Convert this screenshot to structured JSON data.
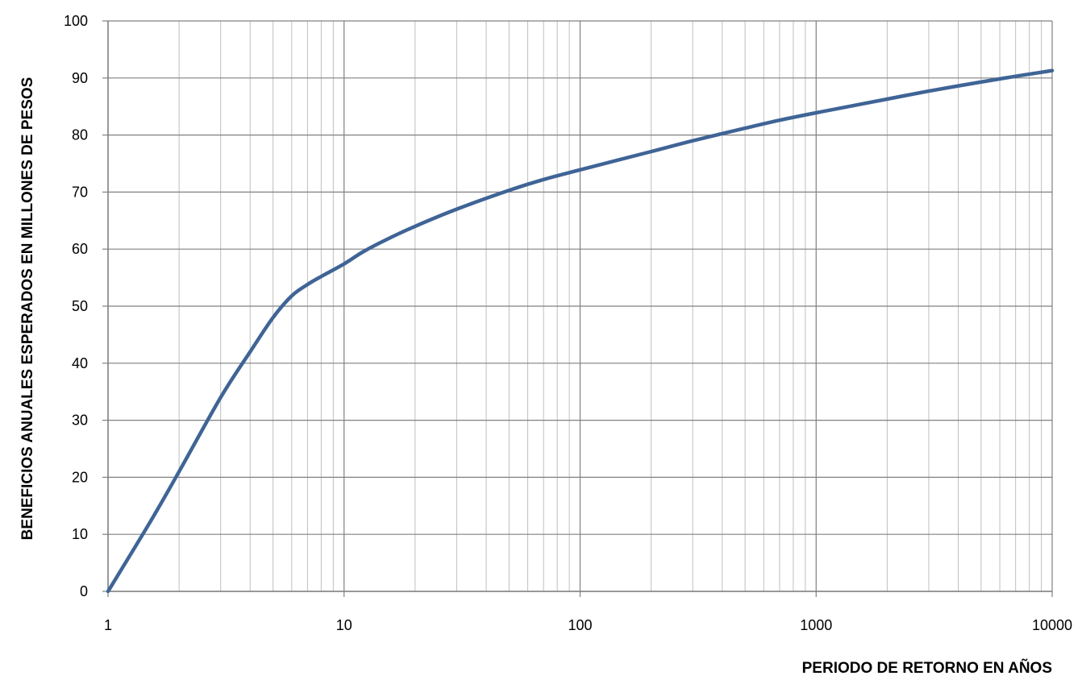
{
  "chart_data": {
    "type": "line",
    "title": "",
    "xlabel": "PERIODO DE RETORNO EN AÑOS",
    "ylabel": "BENEFICIOS ANUALES  ESPERADOS EN MILLONES DE PESOS",
    "xscale": "log",
    "xlim": [
      1,
      10000
    ],
    "ylim": [
      0,
      100
    ],
    "grid": true,
    "legend": "none",
    "x_ticks": [
      "1",
      "10",
      "100",
      "1000",
      "10000"
    ],
    "y_ticks": [
      "0",
      "10",
      "20",
      "30",
      "40",
      "50",
      "60",
      "70",
      "80",
      "90",
      "100"
    ],
    "series": [
      {
        "color": "#3F6496",
        "x": [
          1,
          1.5,
          2,
          3,
          4,
          5,
          6,
          7,
          8,
          10,
          12,
          15,
          20,
          30,
          50,
          70,
          100,
          200,
          300,
          500,
          700,
          1000,
          2000,
          3000,
          5000,
          7000,
          10000
        ],
        "y": [
          0,
          12,
          21,
          34,
          42,
          48,
          51.8,
          53.8,
          55.2,
          57.4,
          59.5,
          61.6,
          64,
          67,
          70.3,
          72.2,
          73.9,
          77.1,
          79,
          81.2,
          82.6,
          83.9,
          86.3,
          87.7,
          89.3,
          90.3,
          91.3
        ]
      }
    ]
  }
}
